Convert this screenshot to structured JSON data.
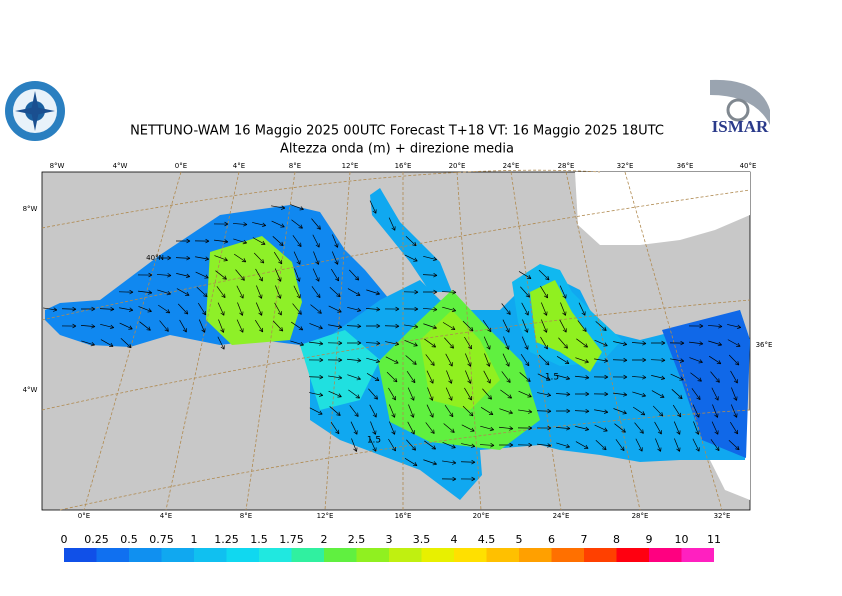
{
  "header": {
    "title": "NETTUNO-WAM 16 Maggio 2025 00UTC Forecast T+18 VT: 16 Maggio 2025 18UTC",
    "subtitle": "Altezza onda (m) + direzione media"
  },
  "logos": {
    "right": "ISMAR"
  },
  "map": {
    "top_labels": [
      "8°W",
      "4°W",
      "0°E",
      "4°E",
      "8°E",
      "12°E",
      "16°E",
      "20°E",
      "24°E",
      "28°E",
      "32°E",
      "36°E",
      "40°E"
    ],
    "bottom_labels": [
      "0°E",
      "4°E",
      "8°E",
      "12°E",
      "16°E",
      "20°E",
      "24°E",
      "28°E",
      "32°E"
    ],
    "left_labels": [
      "8°W",
      "40°N",
      "4°W"
    ],
    "right_labels": [
      "36°E"
    ],
    "contour_labels": [
      "1.5",
      "1.5"
    ]
  },
  "legend": {
    "levels": [
      0,
      0.25,
      0.5,
      0.75,
      1,
      1.25,
      1.5,
      1.75,
      2,
      2.5,
      3,
      3.5,
      4,
      4.5,
      5,
      6,
      7,
      8,
      9,
      10,
      11
    ],
    "colors": [
      "#1050e8",
      "#1070f0",
      "#1090f0",
      "#10a8f0",
      "#10c0f0",
      "#10d8f0",
      "#20e8e0",
      "#30f0a0",
      "#60f040",
      "#90f020",
      "#c0f010",
      "#e8f000",
      "#ffe000",
      "#ffc000",
      "#ffa000",
      "#ff7000",
      "#ff4000",
      "#ff0010",
      "#ff0080",
      "#ff20c0"
    ]
  }
}
